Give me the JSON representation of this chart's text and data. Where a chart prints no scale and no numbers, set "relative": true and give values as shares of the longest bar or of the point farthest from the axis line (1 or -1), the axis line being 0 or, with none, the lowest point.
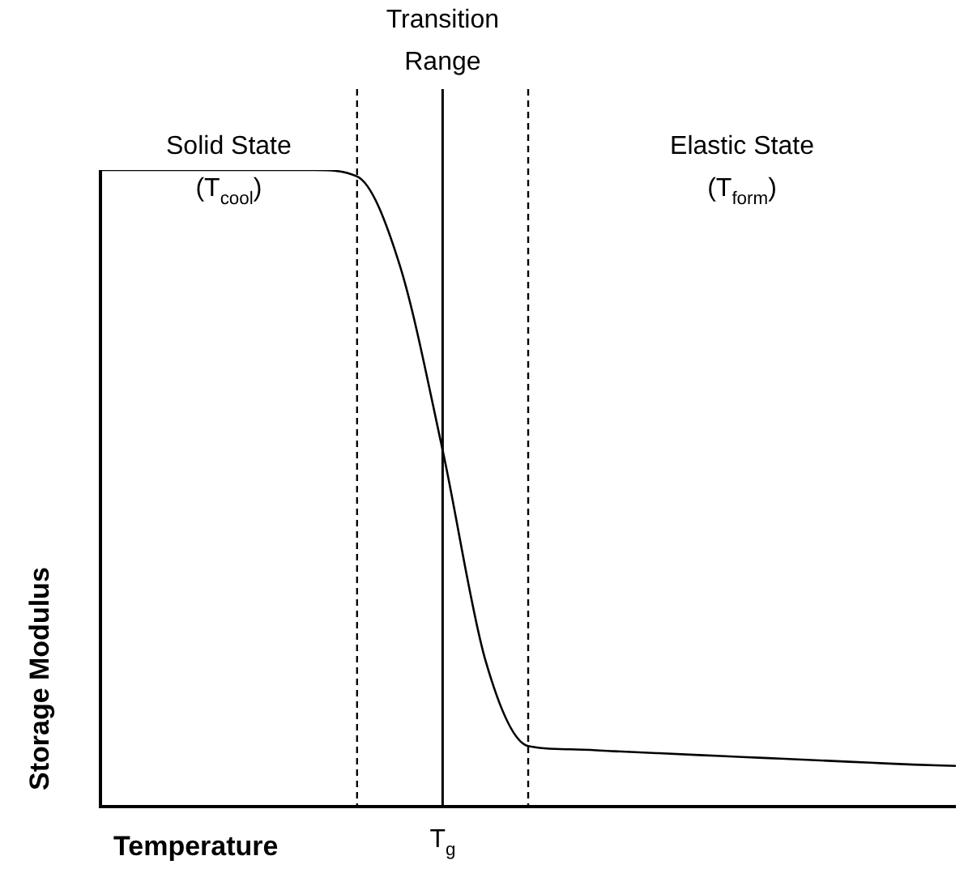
{
  "chart_data": {
    "type": "line",
    "relative": true,
    "xlabel": "Temperature",
    "ylabel": "Storage Modulus",
    "categories": [
      null,
      null,
      null,
      null,
      null,
      null,
      null,
      null,
      null,
      null,
      null,
      null,
      null,
      null,
      null,
      null,
      null,
      null,
      null,
      null,
      null
    ],
    "series": [
      {
        "color": "#000000",
        "values": [
          1,
          1,
          1,
          1,
          1,
          1,
          0.99,
          0.85,
          0.56,
          0.23,
          0.095,
          0.09,
          0.087,
          0.084,
          0.081,
          0.078,
          0.075,
          0.072,
          0.069,
          0.066,
          0.064
        ]
      }
    ],
    "annotations": [
      "Transition Range",
      "Solid State (T$_{cool}$)",
      "Elastic State (T$_{form}$)",
      "T$_{g}$"
    ],
    "marker": "none",
    "line_style": "solid",
    "legend": false
  }
}
